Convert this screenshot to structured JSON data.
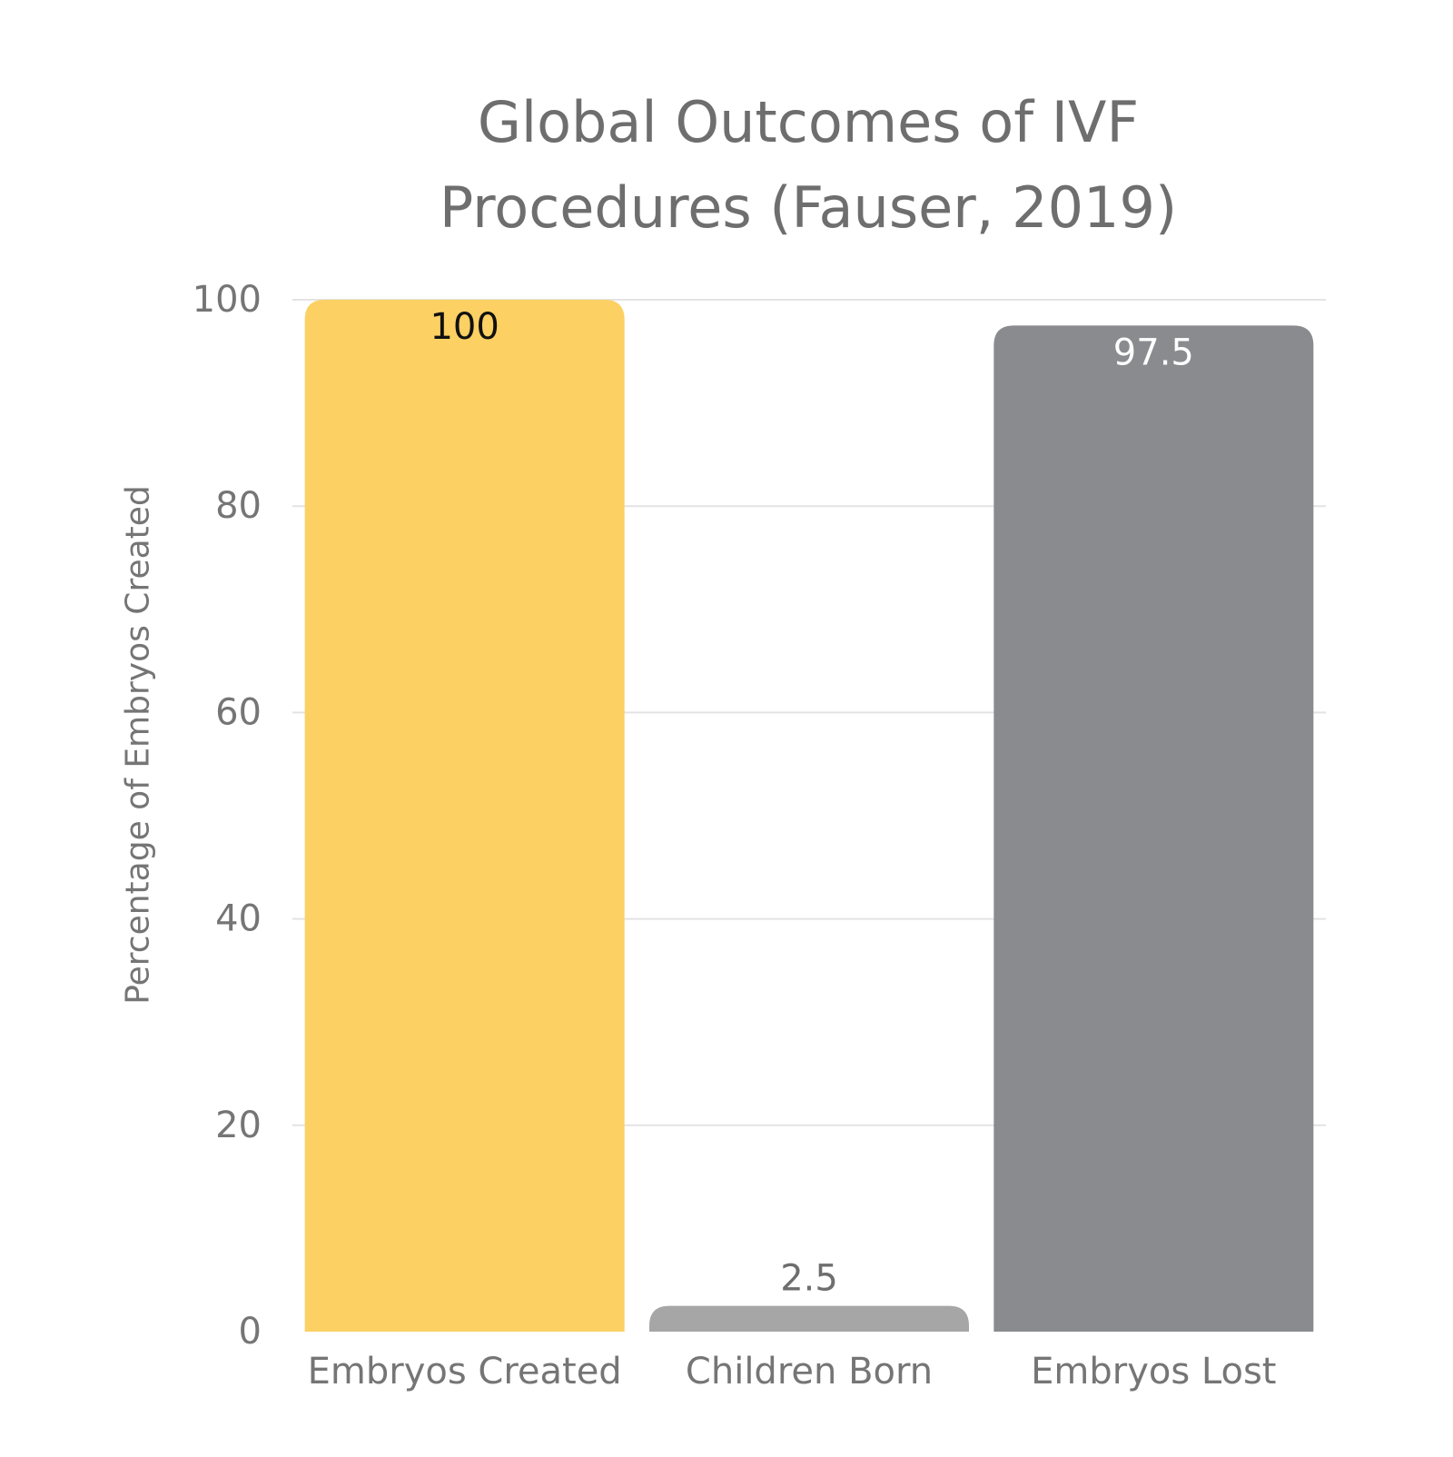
{
  "chart_data": {
    "type": "bar",
    "title": "Global Outcomes of IVF\nProcedures (Fauser, 2019)",
    "xlabel": "",
    "ylabel": "Percentage of Embryos Created",
    "categories": [
      "Embryos Created",
      "Children Born",
      "Embryos Lost"
    ],
    "values": [
      100,
      2.5,
      97.5
    ],
    "data_labels": [
      "100",
      "2.5",
      "97.5"
    ],
    "bar_colors": [
      "#fcd062",
      "#a6a6a6",
      "#8a8b8f"
    ],
    "data_label_colors": [
      "#111111",
      "#6e6e6e",
      "#ffffff"
    ],
    "data_label_position": [
      "inside",
      "above",
      "inside"
    ],
    "ylim": [
      0,
      100
    ],
    "yticks": [
      0,
      20,
      40,
      60,
      80,
      100
    ],
    "grid": true,
    "legend": "none"
  }
}
